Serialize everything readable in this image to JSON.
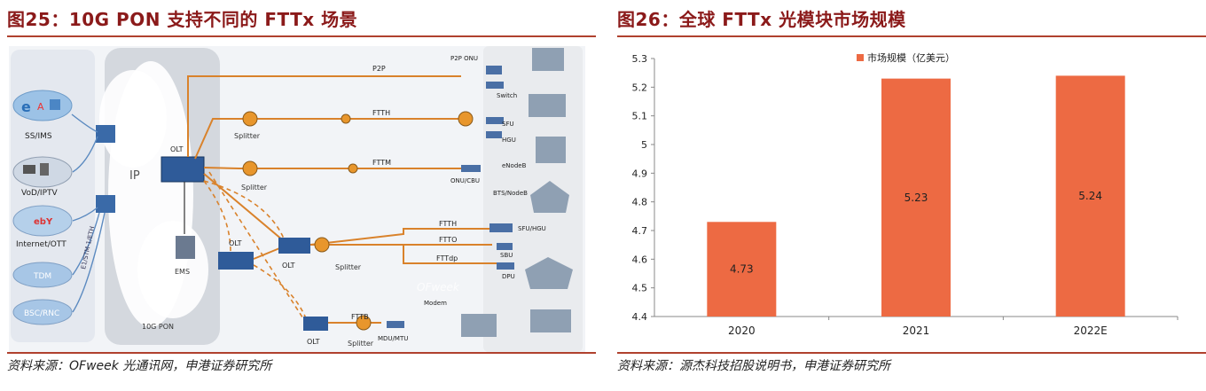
{
  "left": {
    "title": "图25：10G PON 支持不同的 FTTx 场景",
    "source": "资料来源：OFweek 光通讯网，申港证券研究所",
    "diagram": {
      "services": [
        "SS/IMS",
        "VoD/IPTV",
        "Internet/OTT",
        "TDM",
        "BSC/RNC"
      ],
      "service_vertical": "E1/STM-1/ETH",
      "network": [
        "IP",
        "10G PON",
        "EMS"
      ],
      "olt": "OLT",
      "splitter": "Splitter",
      "links": [
        "P2P",
        "FTTH",
        "FTTM",
        "FTTH",
        "FTTO",
        "FTTdp",
        "FTTB"
      ],
      "end_devices": [
        "P2P ONU",
        "Switch",
        "SFU",
        "HGU",
        "eNodeB",
        "ONU/CBU",
        "BTS/NodeB",
        "SFU/HGU",
        "SBU",
        "DPU",
        "Modem",
        "MDU/MTU"
      ],
      "watermark": "OFweek"
    }
  },
  "right": {
    "title": "图26：全球 FTTx 光模块市场规模",
    "source": "资料来源：源杰科技招股说明书，申港证券研究所",
    "chart_data": {
      "type": "bar",
      "categories": [
        "2020",
        "2021",
        "2022E"
      ],
      "series": [
        {
          "name": "市场规模（亿美元）",
          "values": [
            4.73,
            5.23,
            5.24
          ]
        }
      ],
      "data_labels": [
        "4.73",
        "5.23",
        "5.24"
      ],
      "yticks": [
        "5.3",
        "5.2",
        "5.1",
        "5",
        "4.9",
        "4.8",
        "4.7",
        "4.6",
        "4.5",
        "4.4"
      ],
      "ylim": [
        4.4,
        5.3
      ],
      "legend_position": "top",
      "bar_color": "#ed6a43",
      "grid": false
    }
  }
}
